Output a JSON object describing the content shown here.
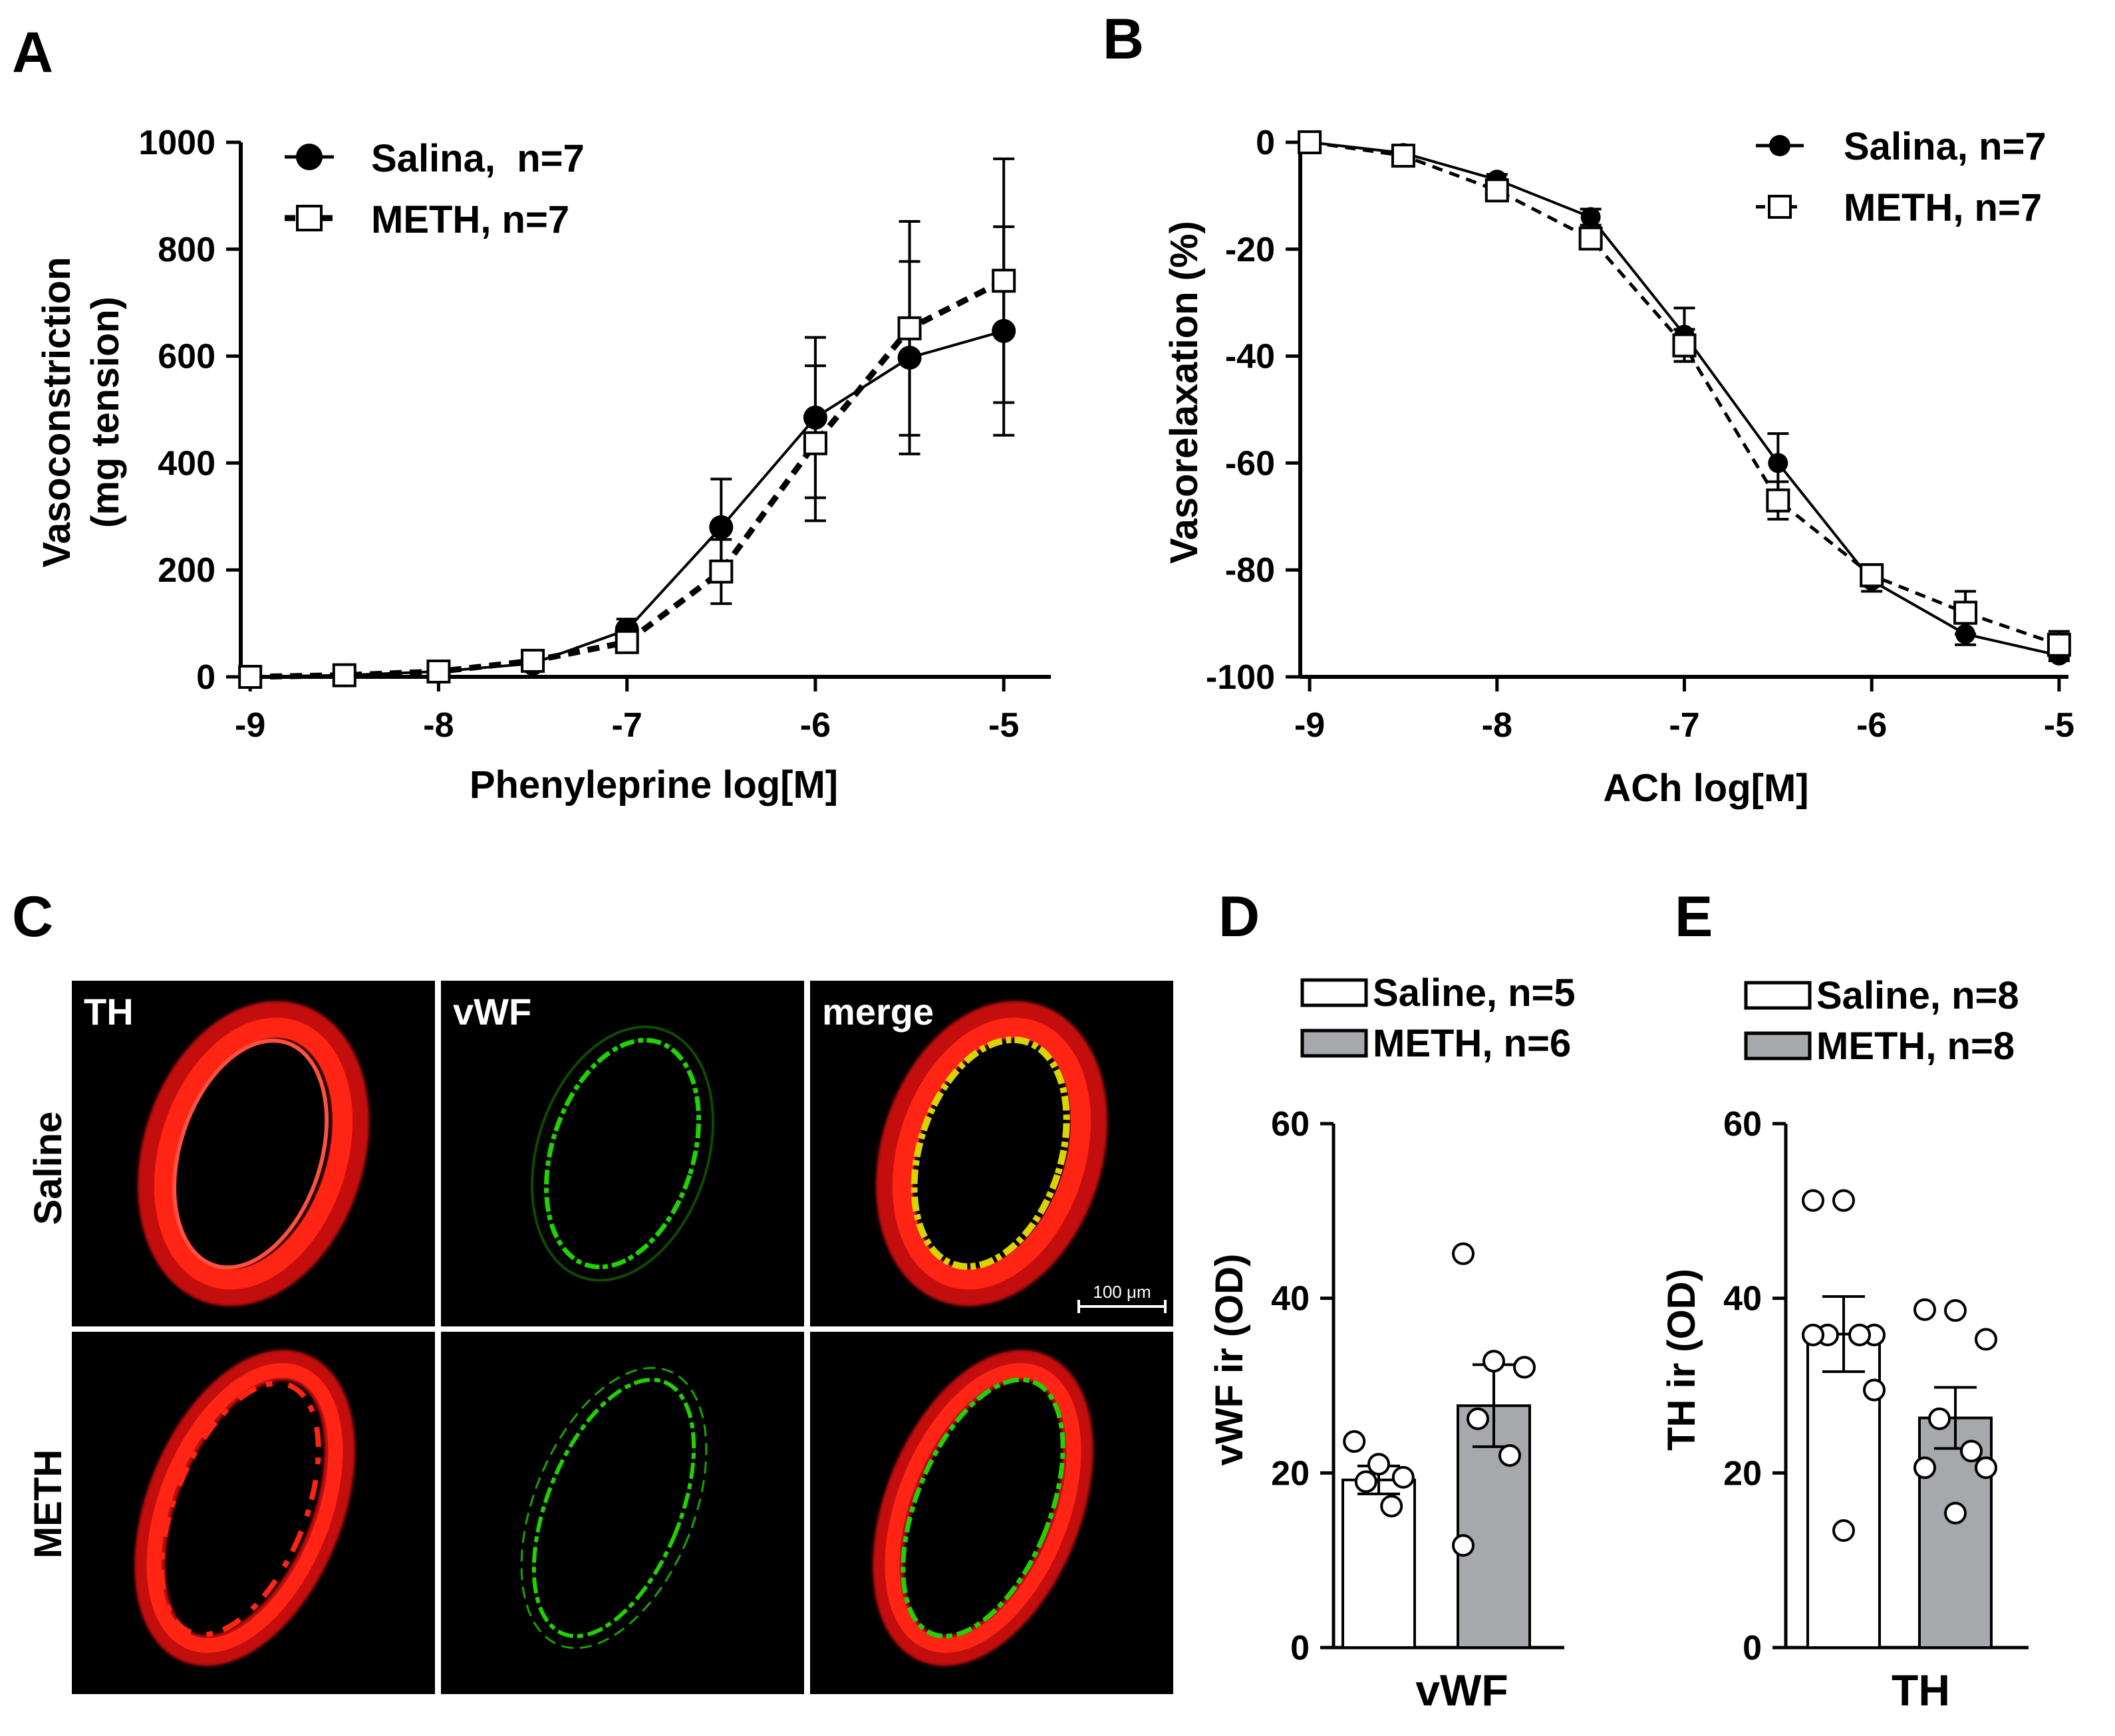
{
  "panels": {
    "A": "A",
    "B": "B",
    "C": "C",
    "D": "D",
    "E": "E"
  },
  "chart_data": [
    {
      "id": "A",
      "type": "line",
      "xlabel": "Phenyleprine log[M]",
      "ylabel_line1": "Vasoconstriction",
      "ylabel_line2": "(mg tension)",
      "xlim": [
        -9.05,
        -4.75
      ],
      "ylim": [
        0,
        1000
      ],
      "xticks": [
        -9,
        -8,
        -7,
        -6,
        -5
      ],
      "xtick_labels": [
        "-9",
        "-8",
        "-7",
        "-6",
        "-5"
      ],
      "yticks": [
        0,
        200,
        400,
        600,
        800,
        1000
      ],
      "ytick_labels": [
        "0",
        "200",
        "400",
        "600",
        "800",
        "1000"
      ],
      "legend_position": "top-left",
      "series": [
        {
          "name": "Salina,  n=7",
          "style": "solid-filled-circle",
          "x": [
            -9,
            -8.5,
            -8,
            -7.5,
            -7,
            -6.5,
            -6,
            -5.5,
            -5
          ],
          "y": [
            0,
            3,
            10,
            25,
            88,
            280,
            485,
            597,
            647
          ],
          "err": [
            0,
            0,
            5,
            5,
            20,
            90,
            150,
            180,
            195
          ]
        },
        {
          "name": "METH, n=7",
          "style": "dashed-open-square",
          "x": [
            -9,
            -8.5,
            -8,
            -7.5,
            -7,
            -6.5,
            -6,
            -5.5,
            -5
          ],
          "y": [
            0,
            3,
            10,
            30,
            65,
            197,
            437,
            652,
            741
          ],
          "err": [
            0,
            0,
            5,
            5,
            15,
            60,
            145,
            200,
            228
          ]
        }
      ]
    },
    {
      "id": "B",
      "type": "line",
      "xlabel": "ACh log[M]",
      "ylabel": "Vasorelaxation (%)",
      "xlim": [
        -9.05,
        -4.95
      ],
      "ylim": [
        -100,
        0
      ],
      "xticks": [
        -9,
        -8,
        -7,
        -6,
        -5
      ],
      "xtick_labels": [
        "-9",
        "-8",
        "-7",
        "-6",
        "-5"
      ],
      "yticks": [
        0,
        -20,
        -40,
        -60,
        -80,
        -100
      ],
      "ytick_labels": [
        "0",
        "-20",
        "-40",
        "-60",
        "-80",
        "-100"
      ],
      "legend_position": "top-right",
      "series": [
        {
          "name": "Salina, n=7",
          "style": "solid-filled-circle",
          "x": [
            -9,
            -8.5,
            -8,
            -7.5,
            -7,
            -6.5,
            -6,
            -5.5,
            -5
          ],
          "y": [
            0,
            -2,
            -7,
            -14,
            -36,
            -60,
            -82,
            -92,
            -96
          ],
          "err": [
            0,
            0.5,
            1,
            1.5,
            5,
            5.5,
            2,
            2,
            1
          ]
        },
        {
          "name": "METH, n=7",
          "style": "dashed-open-square",
          "x": [
            -9,
            -8.5,
            -8,
            -7.5,
            -7,
            -6.5,
            -6,
            -5.5,
            -5
          ],
          "y": [
            0,
            -2.5,
            -9,
            -18,
            -38,
            -67,
            -81,
            -88,
            -94
          ],
          "err": [
            0,
            0.5,
            1,
            1.5,
            3,
            3.5,
            2,
            4,
            2.5
          ]
        }
      ]
    },
    {
      "id": "D",
      "type": "bar",
      "title_below": "vWF",
      "ylabel": "vWF ir (OD)",
      "ylim": [
        0,
        60
      ],
      "yticks": [
        0,
        20,
        40,
        60
      ],
      "ytick_labels": [
        "0",
        "20",
        "40",
        "60"
      ],
      "legend_position": "top",
      "series": [
        {
          "name": "Saline, n=5",
          "fill": "#ffffff",
          "mean": 19.2,
          "sem": 1.6,
          "points": [
            23.6,
            21.0,
            19.5,
            19.0,
            16.2
          ]
        },
        {
          "name": "METH, n=6",
          "fill": "#a7a8ac",
          "mean": 27.7,
          "sem": 4.7,
          "points": [
            45.1,
            32.8,
            32.1,
            26.2,
            22.0,
            11.7
          ]
        }
      ]
    },
    {
      "id": "E",
      "type": "bar",
      "title_below": "TH",
      "ylabel": "TH ir (OD)",
      "ylim": [
        0,
        60
      ],
      "yticks": [
        0,
        20,
        40,
        60
      ],
      "ytick_labels": [
        "0",
        "20",
        "40",
        "60"
      ],
      "legend_position": "top",
      "series": [
        {
          "name": "Saline, n=8",
          "fill": "#ffffff",
          "mean": 35.9,
          "sem": 4.3,
          "points": [
            51.2,
            51.2,
            35.8,
            35.8,
            35.8,
            35.8,
            29.5,
            13.4
          ]
        },
        {
          "name": "METH, n=8",
          "fill": "#a7a8ac",
          "mean": 26.3,
          "sem": 3.5,
          "points": [
            38.7,
            38.6,
            35.3,
            26.2,
            22.5,
            20.6,
            20.6,
            15.4
          ]
        }
      ]
    }
  ],
  "micrograph": {
    "columns": [
      "TH",
      "vWF",
      "merge"
    ],
    "rows": [
      "Saline",
      "METH"
    ],
    "scale_bar": "100 μm",
    "colors": {
      "background": "#000000",
      "red": "#ff1a0f",
      "green": "#22d100",
      "yellow": "#d9d300"
    }
  }
}
